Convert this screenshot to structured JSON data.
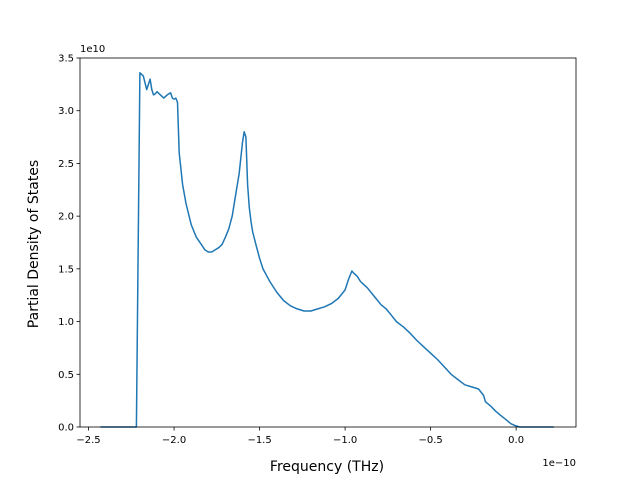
{
  "chart_data": {
    "type": "line",
    "title": "",
    "xlabel": "Frequency (THz)",
    "ylabel": "Partial Density of States",
    "x_offset_text": "1e−10",
    "y_offset_text": "1e10",
    "xlim": [
      -2.55,
      0.35
    ],
    "ylim": [
      0,
      3.5
    ],
    "x_ticks": [
      -2.5,
      -2.0,
      -1.5,
      -1.0,
      -0.5,
      0.0
    ],
    "x_tick_labels": [
      "−2.5",
      "−2.0",
      "−1.5",
      "−1.0",
      "−0.5",
      "0.0"
    ],
    "y_ticks": [
      0,
      0.5,
      1.0,
      1.5,
      2.0,
      2.5,
      3.0,
      3.5
    ],
    "y_tick_labels": [
      "0.0",
      "0.5",
      "1.0",
      "1.5",
      "2.0",
      "2.5",
      "3.0",
      "3.5"
    ],
    "grid": false,
    "line_color": "#1f77b4",
    "series": [
      {
        "x": [
          -2.43,
          -2.22,
          -2.2,
          -2.18,
          -2.16,
          -2.14,
          -2.13,
          -2.12,
          -2.11,
          -2.1,
          -2.08,
          -2.06,
          -2.04,
          -2.02,
          -2.01,
          -2.0,
          -1.99,
          -1.98,
          -1.97,
          -1.95,
          -1.93,
          -1.9,
          -1.87,
          -1.84,
          -1.82,
          -1.8,
          -1.78,
          -1.76,
          -1.74,
          -1.72,
          -1.7,
          -1.68,
          -1.66,
          -1.64,
          -1.62,
          -1.6,
          -1.59,
          -1.58,
          -1.57,
          -1.56,
          -1.55,
          -1.54,
          -1.52,
          -1.5,
          -1.48,
          -1.46,
          -1.44,
          -1.4,
          -1.36,
          -1.32,
          -1.28,
          -1.24,
          -1.2,
          -1.16,
          -1.12,
          -1.08,
          -1.04,
          -1.0,
          -0.98,
          -0.96,
          -0.95,
          -0.93,
          -0.91,
          -0.89,
          -0.87,
          -0.85,
          -0.82,
          -0.79,
          -0.76,
          -0.73,
          -0.7,
          -0.66,
          -0.62,
          -0.58,
          -0.54,
          -0.5,
          -0.46,
          -0.42,
          -0.38,
          -0.34,
          -0.3,
          -0.26,
          -0.22,
          -0.19,
          -0.18,
          -0.15,
          -0.12,
          -0.09,
          -0.06,
          -0.03,
          0.0,
          0.02,
          0.22
        ],
        "y": [
          0,
          0,
          3.36,
          3.33,
          3.2,
          3.3,
          3.2,
          3.15,
          3.16,
          3.18,
          3.15,
          3.12,
          3.15,
          3.17,
          3.12,
          3.11,
          3.12,
          3.08,
          2.6,
          2.3,
          2.12,
          1.92,
          1.8,
          1.73,
          1.68,
          1.66,
          1.66,
          1.68,
          1.7,
          1.73,
          1.8,
          1.88,
          2.0,
          2.2,
          2.4,
          2.7,
          2.8,
          2.75,
          2.3,
          2.08,
          1.95,
          1.85,
          1.72,
          1.6,
          1.5,
          1.44,
          1.38,
          1.28,
          1.2,
          1.15,
          1.12,
          1.1,
          1.1,
          1.12,
          1.14,
          1.17,
          1.22,
          1.3,
          1.4,
          1.48,
          1.46,
          1.43,
          1.38,
          1.35,
          1.32,
          1.28,
          1.22,
          1.16,
          1.12,
          1.06,
          1.0,
          0.95,
          0.89,
          0.82,
          0.76,
          0.7,
          0.64,
          0.57,
          0.5,
          0.45,
          0.4,
          0.38,
          0.36,
          0.3,
          0.24,
          0.2,
          0.15,
          0.11,
          0.07,
          0.03,
          0.01,
          0,
          0
        ]
      }
    ]
  }
}
